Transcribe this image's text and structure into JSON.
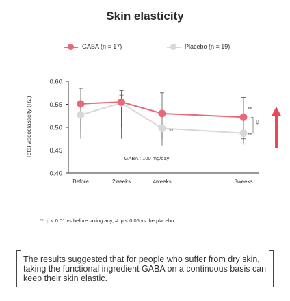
{
  "title": "Skin elasticity",
  "legend": {
    "gaba": "GABA (n = 17)",
    "placebo": "Placebo (n = 19)"
  },
  "colors": {
    "gaba": "#e86a78",
    "placebo": "#d8d8d8",
    "arrow": "#e9475a",
    "error_bar": "#555555"
  },
  "chart_data": {
    "type": "line",
    "title": "Skin elasticity",
    "ylabel": "Total viscoelasticity (R2)",
    "xlabel": "",
    "categories": [
      "Before",
      "2weeks",
      "4weeks",
      "8weeks"
    ],
    "x": [
      0,
      2,
      4,
      8
    ],
    "ylim": [
      0.4,
      0.6
    ],
    "yticks": [
      "0.60",
      "0.55",
      "0.50",
      "0.45",
      "0.40"
    ],
    "grid": false,
    "legend_position": "top",
    "series": [
      {
        "name": "GABA (n = 17)",
        "values": [
          0.551,
          0.555,
          0.53,
          0.522
        ],
        "error_upper": [
          0.585,
          0.58,
          0.575,
          0.565
        ],
        "error_lower": [
          0.475,
          0.475,
          0.475,
          0.47
        ]
      },
      {
        "name": "Placebo (n = 19)",
        "values": [
          0.527,
          0.553,
          0.498,
          0.487
        ],
        "error_upper": [
          0.55,
          0.57,
          0.495,
          0.475
        ],
        "error_lower": [
          0.49,
          0.5,
          0.46,
          0.462
        ]
      }
    ],
    "annotations": {
      "significance_4w_placebo": "**",
      "significance_8w_gaba": "**",
      "significance_8w_placebo": "**",
      "between_group": "#",
      "dose_note": "GABA : 100 mg/day"
    }
  },
  "footnote": "**: p < 0.01 vs before taking any, #: p < 0.05 vs the placebo",
  "conclusion": "The results suggested that for people who suffer from dry skin, taking the functional ingredient GABA on a continuous basis can keep their skin elastic."
}
